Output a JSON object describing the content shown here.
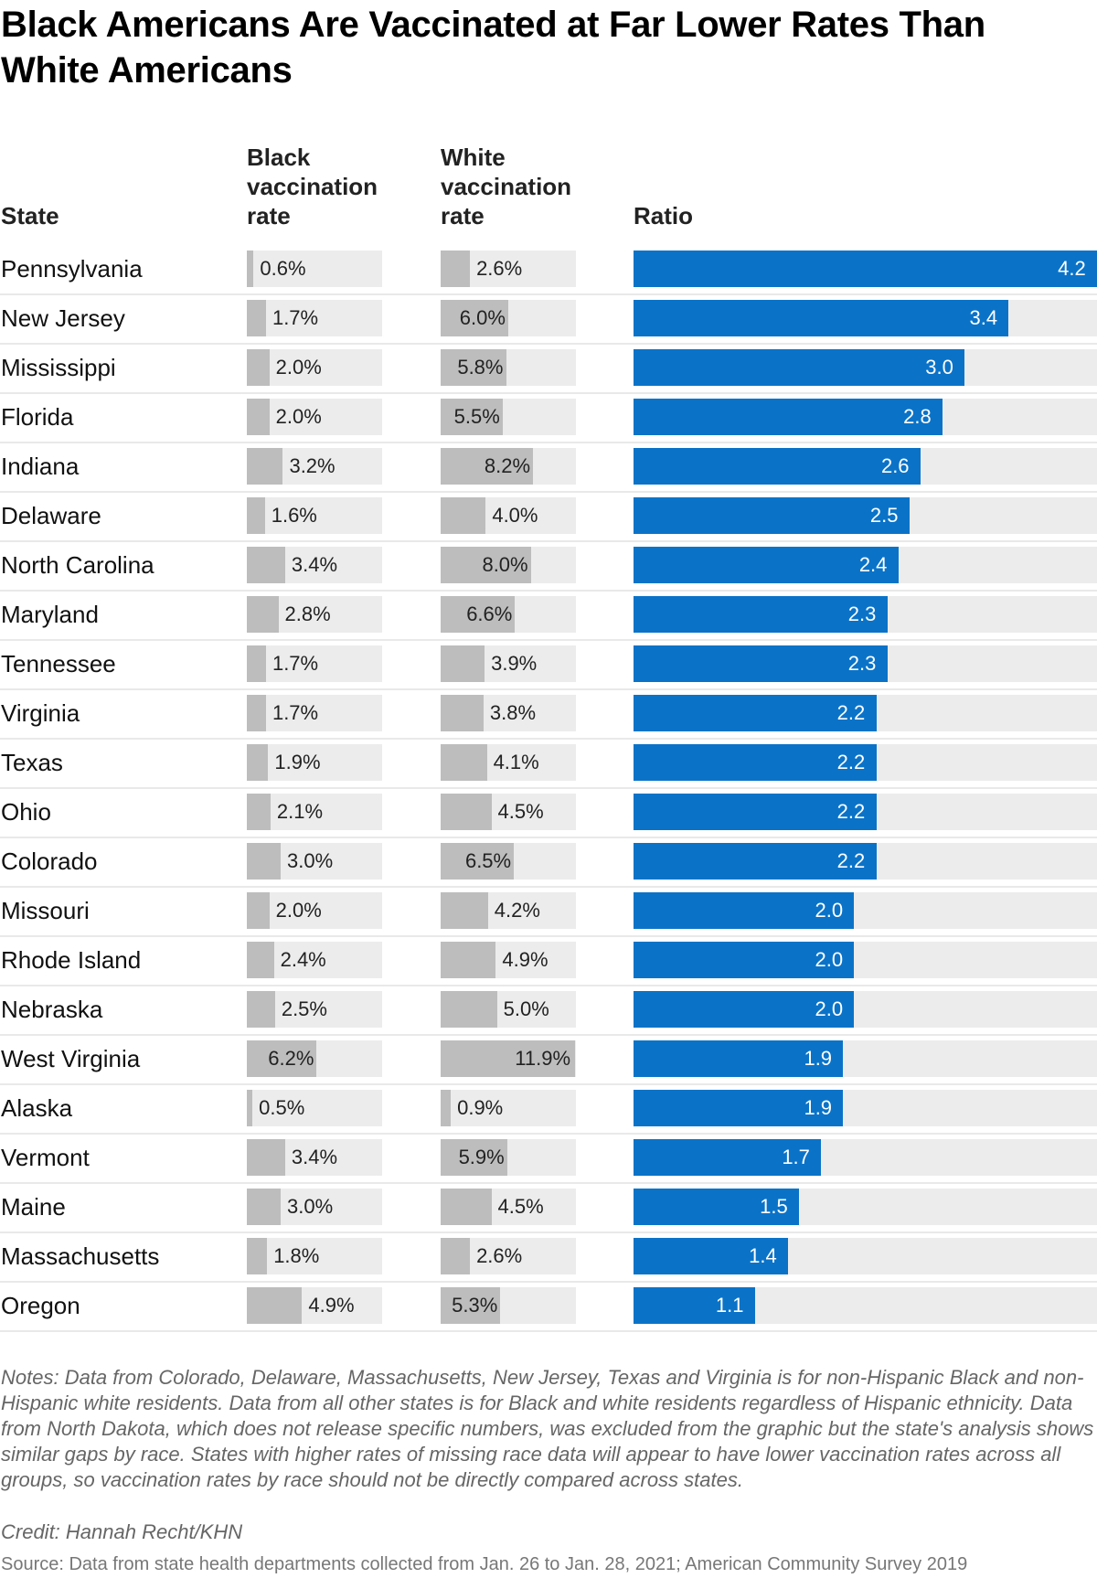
{
  "title": "Black Americans Are Vaccinated at Far Lower Rates Than White Americans",
  "headers": {
    "state": "State",
    "black": "Black vaccination rate",
    "white": "White vaccination rate",
    "ratio": "Ratio"
  },
  "colors": {
    "ratio_bar": "#0a73c8",
    "rate_bar": "#bdbdbd",
    "track": "#ececec"
  },
  "chart_data": {
    "type": "table",
    "columns": [
      "State",
      "Black vaccination rate",
      "White vaccination rate",
      "Ratio"
    ],
    "rows": [
      {
        "state": "Pennsylvania",
        "black": 0.6,
        "white": 2.6,
        "ratio": 4.2,
        "black_label": "0.6%",
        "white_label": "2.6%",
        "ratio_label": "4.2"
      },
      {
        "state": "New Jersey",
        "black": 1.7,
        "white": 6.0,
        "ratio": 3.4,
        "black_label": "1.7%",
        "white_label": "6.0%",
        "ratio_label": "3.4"
      },
      {
        "state": "Mississippi",
        "black": 2.0,
        "white": 5.8,
        "ratio": 3.0,
        "black_label": "2.0%",
        "white_label": "5.8%",
        "ratio_label": "3.0"
      },
      {
        "state": "Florida",
        "black": 2.0,
        "white": 5.5,
        "ratio": 2.8,
        "black_label": "2.0%",
        "white_label": "5.5%",
        "ratio_label": "2.8"
      },
      {
        "state": "Indiana",
        "black": 3.2,
        "white": 8.2,
        "ratio": 2.6,
        "black_label": "3.2%",
        "white_label": "8.2%",
        "ratio_label": "2.6"
      },
      {
        "state": "Delaware",
        "black": 1.6,
        "white": 4.0,
        "ratio": 2.5,
        "black_label": "1.6%",
        "white_label": "4.0%",
        "ratio_label": "2.5"
      },
      {
        "state": "North Carolina",
        "black": 3.4,
        "white": 8.0,
        "ratio": 2.4,
        "black_label": "3.4%",
        "white_label": "8.0%",
        "ratio_label": "2.4"
      },
      {
        "state": "Maryland",
        "black": 2.8,
        "white": 6.6,
        "ratio": 2.3,
        "black_label": "2.8%",
        "white_label": "6.6%",
        "ratio_label": "2.3"
      },
      {
        "state": "Tennessee",
        "black": 1.7,
        "white": 3.9,
        "ratio": 2.3,
        "black_label": "1.7%",
        "white_label": "3.9%",
        "ratio_label": "2.3"
      },
      {
        "state": "Virginia",
        "black": 1.7,
        "white": 3.8,
        "ratio": 2.2,
        "black_label": "1.7%",
        "white_label": "3.8%",
        "ratio_label": "2.2"
      },
      {
        "state": "Texas",
        "black": 1.9,
        "white": 4.1,
        "ratio": 2.2,
        "black_label": "1.9%",
        "white_label": "4.1%",
        "ratio_label": "2.2"
      },
      {
        "state": "Ohio",
        "black": 2.1,
        "white": 4.5,
        "ratio": 2.2,
        "black_label": "2.1%",
        "white_label": "4.5%",
        "ratio_label": "2.2"
      },
      {
        "state": "Colorado",
        "black": 3.0,
        "white": 6.5,
        "ratio": 2.2,
        "black_label": "3.0%",
        "white_label": "6.5%",
        "ratio_label": "2.2"
      },
      {
        "state": "Missouri",
        "black": 2.0,
        "white": 4.2,
        "ratio": 2.0,
        "black_label": "2.0%",
        "white_label": "4.2%",
        "ratio_label": "2.0"
      },
      {
        "state": "Rhode Island",
        "black": 2.4,
        "white": 4.9,
        "ratio": 2.0,
        "black_label": "2.4%",
        "white_label": "4.9%",
        "ratio_label": "2.0"
      },
      {
        "state": "Nebraska",
        "black": 2.5,
        "white": 5.0,
        "ratio": 2.0,
        "black_label": "2.5%",
        "white_label": "5.0%",
        "ratio_label": "2.0"
      },
      {
        "state": "West Virginia",
        "black": 6.2,
        "white": 11.9,
        "ratio": 1.9,
        "black_label": "6.2%",
        "white_label": "11.9%",
        "ratio_label": "1.9"
      },
      {
        "state": "Alaska",
        "black": 0.5,
        "white": 0.9,
        "ratio": 1.9,
        "black_label": "0.5%",
        "white_label": "0.9%",
        "ratio_label": "1.9"
      },
      {
        "state": "Vermont",
        "black": 3.4,
        "white": 5.9,
        "ratio": 1.7,
        "black_label": "3.4%",
        "white_label": "5.9%",
        "ratio_label": "1.7"
      },
      {
        "state": "Maine",
        "black": 3.0,
        "white": 4.5,
        "ratio": 1.5,
        "black_label": "3.0%",
        "white_label": "4.5%",
        "ratio_label": "1.5"
      },
      {
        "state": "Massachusetts",
        "black": 1.8,
        "white": 2.6,
        "ratio": 1.4,
        "black_label": "1.8%",
        "white_label": "2.6%",
        "ratio_label": "1.4"
      },
      {
        "state": "Oregon",
        "black": 4.9,
        "white": 5.3,
        "ratio": 1.1,
        "black_label": "4.9%",
        "white_label": "5.3%",
        "ratio_label": "1.1"
      }
    ],
    "rate_scale_max": 12,
    "ratio_scale_max": 4.2
  },
  "notes": "Notes: Data from Colorado, Delaware, Massachusetts, New Jersey, Texas and Virginia is for non-Hispanic Black and non-Hispanic white residents. Data from all other states is for Black and white residents regardless of Hispanic ethnicity. Data from North Dakota, which does not release specific numbers, was excluded from the graphic but the state's analysis shows similar gaps by race. States with higher rates of missing race data will appear to have lower vaccination rates across all groups, so vaccination rates by race should not be directly compared across states.",
  "credit": "Credit: Hannah Recht/KHN",
  "source": "Source: Data from state health departments collected from Jan. 26 to Jan. 28, 2021; American Community Survey 2019"
}
